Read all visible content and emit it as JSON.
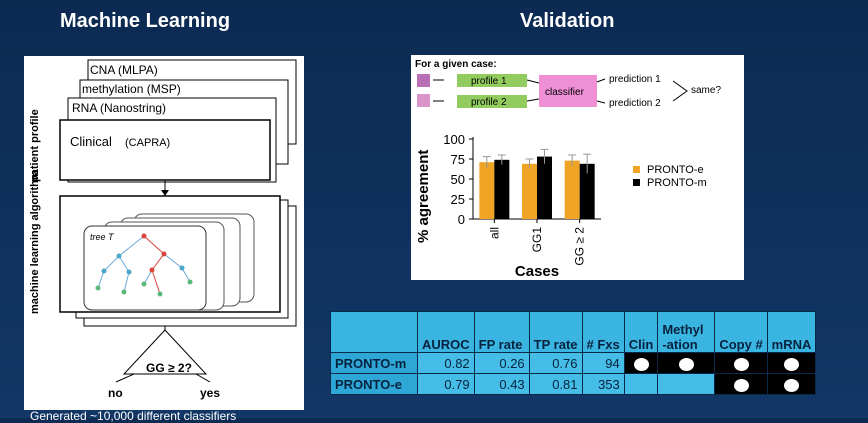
{
  "headings": {
    "left": "Machine Learning",
    "right": "Validation"
  },
  "ml": {
    "layers": [
      "CNA (MLPA)",
      "methylation (MSP)",
      "RNA (Nanostring)"
    ],
    "clinical": "Clinical",
    "clinical_small": "(CAPRA)",
    "profile_label": "patient profile",
    "algo_label": "machine learning algorithm",
    "tree_label": "tree T",
    "threshold": "GG ≥ 2?",
    "no": "no",
    "yes": "yes"
  },
  "validation": {
    "title": "For a given case:",
    "profile1": "profile 1",
    "profile2": "profile 2",
    "classifier": "classifier",
    "pred1": "prediction 1",
    "pred2": "prediction 2",
    "same": "same?"
  },
  "chart_data": {
    "type": "bar",
    "categories": [
      "all",
      "GG1",
      "GG ≥ 2"
    ],
    "series": [
      {
        "name": "PRONTO-e",
        "values": [
          71,
          69,
          73
        ],
        "color": "#f0a426"
      },
      {
        "name": "PRONTO-m",
        "values": [
          74,
          78,
          69
        ],
        "color": "#000000"
      }
    ],
    "errors": [
      [
        7,
        6
      ],
      [
        6,
        9
      ],
      [
        7,
        12
      ]
    ],
    "ylabel": "% agreement",
    "xlabel": "Cases",
    "ylim": [
      0,
      100
    ],
    "yticks": [
      "0",
      "25",
      "50",
      "75",
      "100"
    ]
  },
  "table": {
    "headers": [
      "",
      "AUROC",
      "FP rate",
      "TP rate",
      "# Fxs",
      "Clin",
      "Methyl -ation",
      "Copy #",
      "mRNA"
    ],
    "rows": [
      {
        "name": "PRONTO-m",
        "auroc": "0.82",
        "fp": "0.26",
        "tp": "0.76",
        "fxs": "94",
        "features": [
          true,
          true,
          true,
          true
        ]
      },
      {
        "name": "PRONTO-e",
        "auroc": "0.79",
        "fp": "0.43",
        "tp": "0.81",
        "fxs": "353",
        "features": [
          false,
          false,
          true,
          true
        ]
      }
    ]
  },
  "footer": "Generated ~10,000 different classifiers"
}
